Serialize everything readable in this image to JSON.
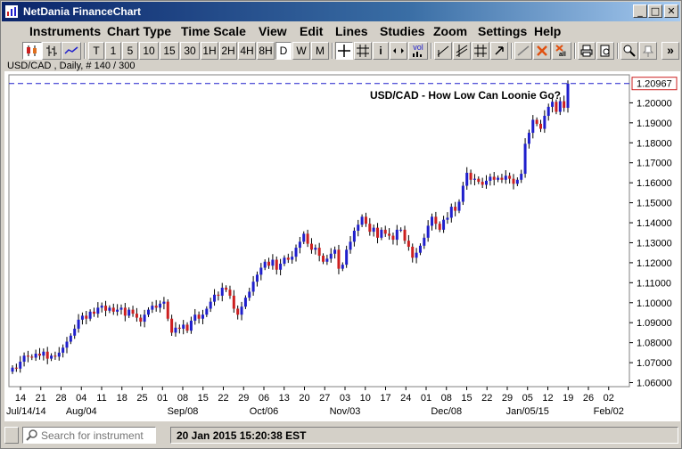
{
  "window": {
    "title": "NetDania FinanceChart",
    "controls": {
      "minimize": "_",
      "maximize": "□",
      "close": "✕"
    }
  },
  "menu": [
    "Instruments",
    "Chart Type",
    "Time Scale",
    "View",
    "Edit",
    "Lines",
    "Studies",
    "Zoom",
    "Settings",
    "Help"
  ],
  "toolbar": {
    "timeframes": [
      "T",
      "1",
      "5",
      "10",
      "15",
      "30",
      "1H",
      "2H",
      "4H",
      "8H",
      "D",
      "W",
      "M"
    ],
    "selected_timeframe": "D",
    "info_label": "i",
    "vol_label": "vol",
    "overflow_label": "»"
  },
  "chart_info": "USD/CAD , Daily, # 140 / 300",
  "status": {
    "search_placeholder": "Search for instrument",
    "datetime": "20 Jan 2015 15:20:38 EST"
  },
  "colors": {
    "up": "#1f1fcc",
    "down": "#cc1f1f",
    "reference": "#1f1fcc",
    "price_marker": "#cc1f1f"
  },
  "chart_data": {
    "type": "candlestick",
    "title": "USD/CAD - How Low Can Loonie Go?",
    "ylim": [
      1.058,
      1.214
    ],
    "y_ticks": [
      1.06,
      1.07,
      1.08,
      1.09,
      1.1,
      1.11,
      1.12,
      1.13,
      1.14,
      1.15,
      1.16,
      1.17,
      1.18,
      1.19,
      1.2
    ],
    "y_tick_labels": [
      "1.06000",
      "1.07000",
      "1.08000",
      "1.09000",
      "1.10000",
      "1.11000",
      "1.12000",
      "1.13000",
      "1.14000",
      "1.15000",
      "1.16000",
      "1.17000",
      "1.18000",
      "1.19000",
      "1.20000"
    ],
    "last_price": 1.20967,
    "last_price_label": "1.20967",
    "x_ticks": [
      "14",
      "21",
      "28",
      "04",
      "11",
      "18",
      "25",
      "01",
      "08",
      "15",
      "22",
      "29",
      "06",
      "13",
      "20",
      "27",
      "03",
      "10",
      "17",
      "24",
      "01",
      "08",
      "15",
      "22",
      "29",
      "05",
      "12",
      "19",
      "26",
      "02"
    ],
    "x_month_labels": [
      "Jul/14/14",
      "Aug/04",
      "Sep/08",
      "Oct/06",
      "Nov/03",
      "Dec/08",
      "Jan/05/15",
      "Feb/02"
    ],
    "x_month_tick_index": [
      0,
      3,
      8,
      12,
      16,
      21,
      25,
      29
    ],
    "closes": [
      1.0675,
      1.067,
      1.0705,
      1.0735,
      1.073,
      1.0725,
      1.0745,
      1.0735,
      1.0755,
      1.072,
      1.0735,
      1.073,
      1.075,
      1.0775,
      1.0805,
      1.0835,
      1.087,
      1.0915,
      1.0935,
      1.092,
      1.0955,
      1.0945,
      1.0975,
      1.0985,
      1.096,
      1.0975,
      1.0955,
      1.0965,
      1.0975,
      1.0935,
      1.0965,
      1.0945,
      1.0925,
      1.0905,
      1.094,
      1.0965,
      1.0985,
      1.0975,
      1.0995,
      1.1005,
      1.092,
      1.085,
      1.0875,
      1.087,
      1.089,
      1.086,
      1.091,
      1.094,
      1.092,
      1.094,
      1.097,
      1.1005,
      1.104,
      1.1035,
      1.1075,
      1.1065,
      1.1035,
      1.097,
      1.094,
      1.098,
      1.1025,
      1.1055,
      1.1105,
      1.114,
      1.1175,
      1.1205,
      1.1185,
      1.1215,
      1.1165,
      1.1195,
      1.1225,
      1.1215,
      1.123,
      1.1275,
      1.1305,
      1.1345,
      1.1295,
      1.1265,
      1.1275,
      1.1235,
      1.1205,
      1.122,
      1.1245,
      1.1265,
      1.117,
      1.119,
      1.1265,
      1.1305,
      1.136,
      1.139,
      1.143,
      1.1395,
      1.1355,
      1.1375,
      1.1325,
      1.1365,
      1.1345,
      1.1335,
      1.1315,
      1.1365,
      1.1365,
      1.131,
      1.128,
      1.1225,
      1.125,
      1.1285,
      1.1325,
      1.1385,
      1.143,
      1.1395,
      1.1365,
      1.1415,
      1.1425,
      1.148,
      1.146,
      1.1505,
      1.1585,
      1.165,
      1.1615,
      1.162,
      1.1605,
      1.159,
      1.161,
      1.163,
      1.1615,
      1.1625,
      1.1615,
      1.1635,
      1.162,
      1.1595,
      1.1615,
      1.1645,
      1.1795,
      1.185,
      1.1915,
      1.1895,
      1.187,
      1.1935,
      1.198,
      1.2005,
      1.1955,
      1.2008,
      1.1975,
      1.2096
    ]
  }
}
